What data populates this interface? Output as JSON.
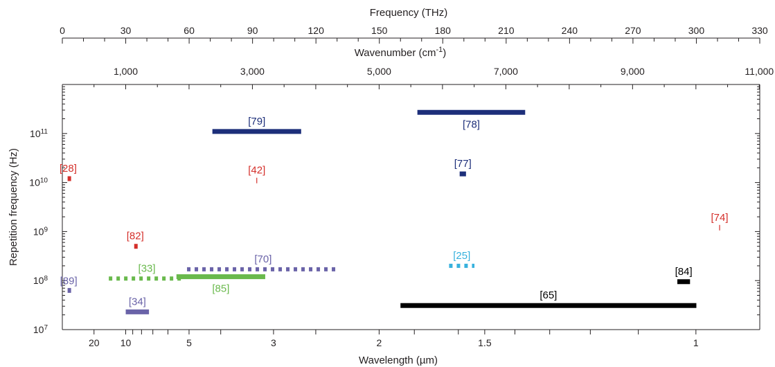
{
  "chart_data": {
    "type": "scatter",
    "top_axis_1": {
      "title": "Frequency (THz)",
      "range": [
        0,
        330
      ],
      "ticks": [
        "0",
        "30",
        "60",
        "90",
        "120",
        "150",
        "180",
        "210",
        "240",
        "270",
        "300",
        "330"
      ]
    },
    "top_axis_2": {
      "title": "Wavenumber (cm",
      "title_sup": "-1",
      "title_end": ")",
      "ticks": [
        "1,000",
        "3,000",
        "5,000",
        "7,000",
        "9,000",
        "11,000"
      ]
    },
    "x_axis": {
      "title": "Wavelength (µm)",
      "scale": "frequency-linear",
      "ticks": [
        "20",
        "10",
        "5",
        "3",
        "2",
        "1.5",
        "1"
      ]
    },
    "y_axis": {
      "title": "Repetition frequency (Hz)",
      "scale": "log",
      "range": [
        10000000,
        1000000000000
      ],
      "ticks": [
        {
          "base": "10",
          "exp": "7"
        },
        {
          "base": "10",
          "exp": "8"
        },
        {
          "base": "10",
          "exp": "9"
        },
        {
          "base": "10",
          "exp": "10"
        },
        {
          "base": "10",
          "exp": "11"
        }
      ]
    },
    "series": [
      {
        "label": "[28]",
        "color": "#d42f2a",
        "style": "solid",
        "freq_thz": [
          2.5,
          3.0
        ],
        "rep_rate_hz": 12000000000
      },
      {
        "label": "[82]",
        "color": "#d42f2a",
        "style": "solid",
        "freq_thz": [
          34.0,
          35.0
        ],
        "rep_rate_hz": 500000000
      },
      {
        "label": "[42]",
        "color": "#d42f2a",
        "style": "tick",
        "freq_thz": [
          92.0,
          92.0
        ],
        "rep_rate_hz": 11000000000
      },
      {
        "label": "[74]",
        "color": "#d42f2a",
        "style": "tick",
        "freq_thz": [
          311.0,
          311.0
        ],
        "rep_rate_hz": 1200000000
      },
      {
        "label": "[79]",
        "color": "#1d2f7a",
        "style": "solid",
        "freq_thz": [
          71.0,
          113.0
        ],
        "rep_rate_hz": 110000000000
      },
      {
        "label": "[78]",
        "color": "#1d2f7a",
        "style": "solid",
        "freq_thz": [
          168.0,
          219.0
        ],
        "rep_rate_hz": 270000000000
      },
      {
        "label": "[77]",
        "color": "#1d2f7a",
        "style": "solid",
        "freq_thz": [
          188.0,
          191.0
        ],
        "rep_rate_hz": 15000000000
      },
      {
        "label": "[89]",
        "color": "#6a63a8",
        "style": "solid",
        "freq_thz": [
          2.5,
          3.5
        ],
        "rep_rate_hz": 63000000
      },
      {
        "label": "[34]",
        "color": "#6a63a8",
        "style": "solid",
        "freq_thz": [
          30.0,
          41.0
        ],
        "rep_rate_hz": 23000000
      },
      {
        "label": "[70]",
        "color": "#6a63a8",
        "style": "dashed",
        "freq_thz": [
          59.0,
          131.0
        ],
        "rep_rate_hz": 170000000
      },
      {
        "label": "[33]",
        "color": "#69b94c",
        "style": "dashed",
        "freq_thz": [
          22.0,
          58.0
        ],
        "rep_rate_hz": 110000000
      },
      {
        "label": "[85]",
        "color": "#69b94c",
        "style": "solid",
        "freq_thz": [
          54.0,
          96.0
        ],
        "rep_rate_hz": 120000000
      },
      {
        "label": "[25]",
        "color": "#36b1dd",
        "style": "dashed",
        "freq_thz": [
          183.0,
          195.0
        ],
        "rep_rate_hz": 200000000
      },
      {
        "label": "[84]",
        "color": "#000000",
        "style": "solid",
        "freq_thz": [
          291.0,
          297.0
        ],
        "rep_rate_hz": 95000000
      },
      {
        "label": "[65]",
        "color": "#000000",
        "style": "solid",
        "freq_thz": [
          160.0,
          300.0
        ],
        "rep_rate_hz": 31000000
      }
    ]
  }
}
